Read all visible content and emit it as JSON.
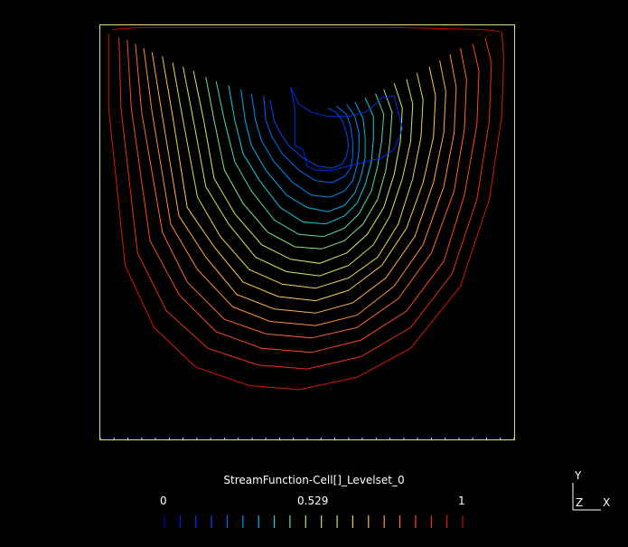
{
  "chart_data": {
    "type": "contour",
    "title": "",
    "colorbar": {
      "label": "StreamFunction-Cell[]_Levelset_0",
      "ticks": [
        {
          "value": 0,
          "label": "0"
        },
        {
          "value": 0.529,
          "label": "0.529"
        },
        {
          "value": 1,
          "label": "1"
        }
      ],
      "range": [
        0,
        1
      ],
      "levels": 20,
      "colormap": "blue-cyan-yellow-red"
    },
    "domain": {
      "x": [
        0,
        1
      ],
      "y": [
        0,
        1
      ]
    },
    "vortex_center": {
      "x": 0.6,
      "y": 0.76
    },
    "contours": [
      {
        "level": 0.0,
        "points": [
          [
            0.03,
            0.99
          ],
          [
            0.1,
            0.995
          ],
          [
            0.3,
            0.995
          ],
          [
            0.5,
            0.995
          ],
          [
            0.7,
            0.995
          ],
          [
            0.93,
            0.99
          ],
          [
            0.965,
            0.985
          ]
        ]
      },
      {
        "level": 0.05,
        "points": [
          [
            0.02,
            0.98
          ],
          [
            0.02,
            0.8
          ],
          [
            0.06,
            0.42
          ],
          [
            0.13,
            0.27
          ],
          [
            0.23,
            0.175
          ],
          [
            0.36,
            0.13
          ],
          [
            0.48,
            0.12
          ],
          [
            0.62,
            0.15
          ],
          [
            0.75,
            0.22
          ],
          [
            0.87,
            0.37
          ],
          [
            0.94,
            0.58
          ],
          [
            0.97,
            0.78
          ],
          [
            0.975,
            0.92
          ],
          [
            0.97,
            0.985
          ]
        ]
      },
      {
        "level": 0.1,
        "points": [
          [
            0.045,
            0.97
          ],
          [
            0.05,
            0.8
          ],
          [
            0.09,
            0.45
          ],
          [
            0.16,
            0.31
          ],
          [
            0.26,
            0.22
          ],
          [
            0.38,
            0.18
          ],
          [
            0.5,
            0.17
          ],
          [
            0.63,
            0.2
          ],
          [
            0.75,
            0.27
          ],
          [
            0.85,
            0.4
          ],
          [
            0.91,
            0.58
          ],
          [
            0.94,
            0.77
          ],
          [
            0.945,
            0.91
          ],
          [
            0.93,
            0.97
          ]
        ]
      },
      {
        "level": 0.15,
        "points": [
          [
            0.065,
            0.965
          ],
          [
            0.075,
            0.8
          ],
          [
            0.12,
            0.48
          ],
          [
            0.19,
            0.35
          ],
          [
            0.28,
            0.26
          ],
          [
            0.39,
            0.22
          ],
          [
            0.51,
            0.21
          ],
          [
            0.63,
            0.24
          ],
          [
            0.74,
            0.31
          ],
          [
            0.83,
            0.43
          ],
          [
            0.88,
            0.59
          ],
          [
            0.91,
            0.76
          ],
          [
            0.915,
            0.89
          ],
          [
            0.9,
            0.955
          ]
        ]
      },
      {
        "level": 0.2,
        "points": [
          [
            0.085,
            0.955
          ],
          [
            0.1,
            0.79
          ],
          [
            0.15,
            0.5
          ],
          [
            0.21,
            0.38
          ],
          [
            0.3,
            0.29
          ],
          [
            0.4,
            0.255
          ],
          [
            0.51,
            0.245
          ],
          [
            0.62,
            0.27
          ],
          [
            0.72,
            0.34
          ],
          [
            0.8,
            0.45
          ],
          [
            0.855,
            0.6
          ],
          [
            0.88,
            0.75
          ],
          [
            0.885,
            0.87
          ],
          [
            0.87,
            0.945
          ]
        ]
      },
      {
        "level": 0.25,
        "points": [
          [
            0.105,
            0.945
          ],
          [
            0.125,
            0.79
          ],
          [
            0.17,
            0.52
          ],
          [
            0.235,
            0.41
          ],
          [
            0.32,
            0.32
          ],
          [
            0.41,
            0.285
          ],
          [
            0.52,
            0.275
          ],
          [
            0.62,
            0.3
          ],
          [
            0.71,
            0.37
          ],
          [
            0.78,
            0.47
          ],
          [
            0.83,
            0.61
          ],
          [
            0.855,
            0.74
          ],
          [
            0.86,
            0.85
          ],
          [
            0.845,
            0.93
          ]
        ]
      },
      {
        "level": 0.3,
        "points": [
          [
            0.125,
            0.935
          ],
          [
            0.15,
            0.78
          ],
          [
            0.19,
            0.54
          ],
          [
            0.255,
            0.44
          ],
          [
            0.33,
            0.35
          ],
          [
            0.42,
            0.315
          ],
          [
            0.52,
            0.305
          ],
          [
            0.61,
            0.33
          ],
          [
            0.69,
            0.39
          ],
          [
            0.76,
            0.49
          ],
          [
            0.805,
            0.62
          ],
          [
            0.83,
            0.74
          ],
          [
            0.835,
            0.84
          ],
          [
            0.82,
            0.915
          ]
        ]
      },
      {
        "level": 0.35,
        "points": [
          [
            0.15,
            0.925
          ],
          [
            0.175,
            0.78
          ],
          [
            0.21,
            0.56
          ],
          [
            0.275,
            0.465
          ],
          [
            0.345,
            0.38
          ],
          [
            0.43,
            0.345
          ],
          [
            0.52,
            0.335
          ],
          [
            0.6,
            0.36
          ],
          [
            0.68,
            0.42
          ],
          [
            0.74,
            0.51
          ],
          [
            0.78,
            0.62
          ],
          [
            0.805,
            0.73
          ],
          [
            0.81,
            0.83
          ],
          [
            0.795,
            0.9
          ]
        ]
      },
      {
        "level": 0.4,
        "points": [
          [
            0.175,
            0.91
          ],
          [
            0.2,
            0.77
          ],
          [
            0.235,
            0.585
          ],
          [
            0.29,
            0.49
          ],
          [
            0.36,
            0.41
          ],
          [
            0.44,
            0.375
          ],
          [
            0.52,
            0.365
          ],
          [
            0.6,
            0.39
          ],
          [
            0.67,
            0.44
          ],
          [
            0.72,
            0.52
          ],
          [
            0.755,
            0.63
          ],
          [
            0.775,
            0.73
          ],
          [
            0.78,
            0.82
          ],
          [
            0.765,
            0.885
          ]
        ]
      },
      {
        "level": 0.45,
        "points": [
          [
            0.2,
            0.9
          ],
          [
            0.225,
            0.77
          ],
          [
            0.255,
            0.61
          ],
          [
            0.31,
            0.52
          ],
          [
            0.375,
            0.44
          ],
          [
            0.45,
            0.405
          ],
          [
            0.53,
            0.395
          ],
          [
            0.6,
            0.42
          ],
          [
            0.66,
            0.47
          ],
          [
            0.7,
            0.54
          ],
          [
            0.73,
            0.63
          ],
          [
            0.75,
            0.72
          ],
          [
            0.755,
            0.81
          ],
          [
            0.74,
            0.87
          ]
        ]
      },
      {
        "level": 0.5,
        "points": [
          [
            0.225,
            0.89
          ],
          [
            0.25,
            0.77
          ],
          [
            0.275,
            0.63
          ],
          [
            0.325,
            0.545
          ],
          [
            0.39,
            0.47
          ],
          [
            0.46,
            0.435
          ],
          [
            0.53,
            0.425
          ],
          [
            0.595,
            0.45
          ],
          [
            0.645,
            0.495
          ],
          [
            0.685,
            0.56
          ],
          [
            0.71,
            0.64
          ],
          [
            0.725,
            0.72
          ],
          [
            0.73,
            0.8
          ],
          [
            0.71,
            0.86
          ]
        ]
      },
      {
        "level": 0.55,
        "points": [
          [
            0.255,
            0.875
          ],
          [
            0.275,
            0.77
          ],
          [
            0.3,
            0.65
          ],
          [
            0.345,
            0.57
          ],
          [
            0.405,
            0.5
          ],
          [
            0.47,
            0.465
          ],
          [
            0.535,
            0.46
          ],
          [
            0.59,
            0.48
          ],
          [
            0.635,
            0.52
          ],
          [
            0.67,
            0.58
          ],
          [
            0.69,
            0.65
          ],
          [
            0.7,
            0.72
          ],
          [
            0.705,
            0.79
          ],
          [
            0.685,
            0.845
          ]
        ]
      },
      {
        "level": 0.6,
        "points": [
          [
            0.28,
            0.865
          ],
          [
            0.3,
            0.77
          ],
          [
            0.325,
            0.67
          ],
          [
            0.365,
            0.6
          ],
          [
            0.42,
            0.53
          ],
          [
            0.48,
            0.495
          ],
          [
            0.54,
            0.49
          ],
          [
            0.59,
            0.51
          ],
          [
            0.625,
            0.545
          ],
          [
            0.655,
            0.6
          ],
          [
            0.67,
            0.66
          ],
          [
            0.68,
            0.72
          ],
          [
            0.685,
            0.785
          ],
          [
            0.665,
            0.835
          ]
        ]
      },
      {
        "level": 0.65,
        "points": [
          [
            0.31,
            0.855
          ],
          [
            0.325,
            0.77
          ],
          [
            0.345,
            0.69
          ],
          [
            0.385,
            0.625
          ],
          [
            0.435,
            0.56
          ],
          [
            0.49,
            0.525
          ],
          [
            0.545,
            0.52
          ],
          [
            0.59,
            0.54
          ],
          [
            0.62,
            0.57
          ],
          [
            0.64,
            0.615
          ],
          [
            0.655,
            0.67
          ],
          [
            0.66,
            0.725
          ],
          [
            0.66,
            0.78
          ],
          [
            0.64,
            0.825
          ]
        ]
      },
      {
        "level": 0.7,
        "points": [
          [
            0.34,
            0.845
          ],
          [
            0.35,
            0.77
          ],
          [
            0.365,
            0.71
          ],
          [
            0.4,
            0.65
          ],
          [
            0.45,
            0.59
          ],
          [
            0.5,
            0.56
          ],
          [
            0.55,
            0.55
          ],
          [
            0.59,
            0.565
          ],
          [
            0.615,
            0.595
          ],
          [
            0.63,
            0.635
          ],
          [
            0.64,
            0.68
          ],
          [
            0.64,
            0.73
          ],
          [
            0.635,
            0.775
          ],
          [
            0.615,
            0.815
          ]
        ]
      },
      {
        "level": 0.75,
        "points": [
          [
            0.365,
            0.835
          ],
          [
            0.375,
            0.77
          ],
          [
            0.39,
            0.72
          ],
          [
            0.42,
            0.67
          ],
          [
            0.465,
            0.62
          ],
          [
            0.51,
            0.59
          ],
          [
            0.555,
            0.585
          ],
          [
            0.59,
            0.6
          ],
          [
            0.61,
            0.625
          ],
          [
            0.62,
            0.66
          ],
          [
            0.625,
            0.7
          ],
          [
            0.625,
            0.74
          ],
          [
            0.615,
            0.78
          ],
          [
            0.595,
            0.81
          ]
        ]
      },
      {
        "level": 0.8,
        "points": [
          [
            0.395,
            0.83
          ],
          [
            0.4,
            0.77
          ],
          [
            0.415,
            0.73
          ],
          [
            0.44,
            0.69
          ],
          [
            0.48,
            0.65
          ],
          [
            0.52,
            0.625
          ],
          [
            0.56,
            0.62
          ],
          [
            0.59,
            0.635
          ],
          [
            0.605,
            0.655
          ],
          [
            0.61,
            0.685
          ],
          [
            0.61,
            0.72
          ],
          [
            0.605,
            0.755
          ],
          [
            0.595,
            0.785
          ],
          [
            0.57,
            0.805
          ]
        ]
      },
      {
        "level": 0.85,
        "points": [
          [
            0.41,
            0.82
          ],
          [
            0.42,
            0.77
          ],
          [
            0.435,
            0.74
          ],
          [
            0.455,
            0.71
          ],
          [
            0.49,
            0.68
          ],
          [
            0.525,
            0.66
          ],
          [
            0.56,
            0.655
          ],
          [
            0.585,
            0.665
          ],
          [
            0.595,
            0.685
          ],
          [
            0.6,
            0.71
          ],
          [
            0.595,
            0.74
          ],
          [
            0.585,
            0.77
          ],
          [
            0.57,
            0.79
          ],
          [
            0.55,
            0.8
          ]
        ]
      },
      {
        "level": 0.9,
        "points": [
          [
            0.46,
            0.85
          ],
          [
            0.48,
            0.81
          ],
          [
            0.51,
            0.79
          ],
          [
            0.55,
            0.78
          ],
          [
            0.6,
            0.78
          ],
          [
            0.64,
            0.79
          ],
          [
            0.66,
            0.805
          ],
          [
            0.68,
            0.825
          ],
          [
            0.71,
            0.83
          ],
          [
            0.72,
            0.79
          ],
          [
            0.73,
            0.75
          ],
          [
            0.71,
            0.7
          ],
          [
            0.68,
            0.68
          ],
          [
            0.62,
            0.665
          ],
          [
            0.56,
            0.65
          ],
          [
            0.52,
            0.65
          ],
          [
            0.5,
            0.66
          ],
          [
            0.49,
            0.7
          ],
          [
            0.47,
            0.71
          ],
          [
            0.47,
            0.755
          ],
          [
            0.47,
            0.8
          ],
          [
            0.46,
            0.85
          ]
        ]
      }
    ]
  },
  "axes_triad": {
    "y_label": "Y",
    "z_label": "Z",
    "x_label": "X"
  },
  "colors": {
    "background": "#000000",
    "frame": "#d8e67a",
    "text": "#ffffff",
    "colormap_stops": [
      "#0000c8",
      "#0050ff",
      "#00c8e6",
      "#c8f064",
      "#ffc850",
      "#ff5028",
      "#c80000"
    ]
  }
}
